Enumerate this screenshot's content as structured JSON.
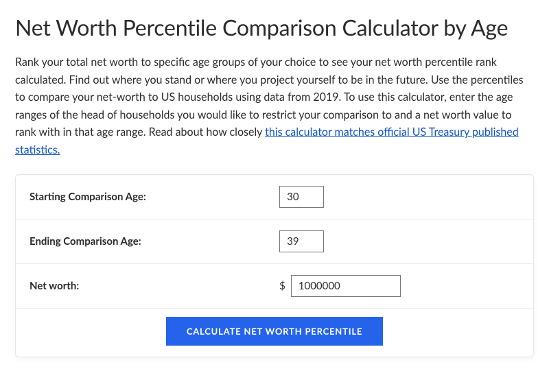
{
  "heading": "Net Worth Percentile Comparison Calculator by Age",
  "description_before_link": "Rank your total net worth to specific age groups of your choice to see your net worth percentile rank calculated. Find out where you stand or where you project yourself to be in the future. Use the percentiles to compare your net-worth to US households using data from 2019. To use this calculator, enter the age ranges of the head of households you would like to restrict your comparison to and a net worth value to rank with in that age range. Read about how closely ",
  "description_link_text": "this calculator matches official US Treasury published statistics.",
  "form": {
    "starting_age": {
      "label": "Starting Comparison Age:",
      "value": "30"
    },
    "ending_age": {
      "label": "Ending Comparison Age:",
      "value": "39"
    },
    "net_worth": {
      "label": "Net worth:",
      "symbol": "$",
      "value": "1000000"
    }
  },
  "button_label": "CALCULATE NET WORTH PERCENTILE",
  "colors": {
    "link": "#1155cc",
    "button_bg": "#2563eb",
    "button_text": "#ffffff",
    "border": "#e5e5e5",
    "row_divider": "#ececec",
    "text": "#2b2b2b"
  }
}
